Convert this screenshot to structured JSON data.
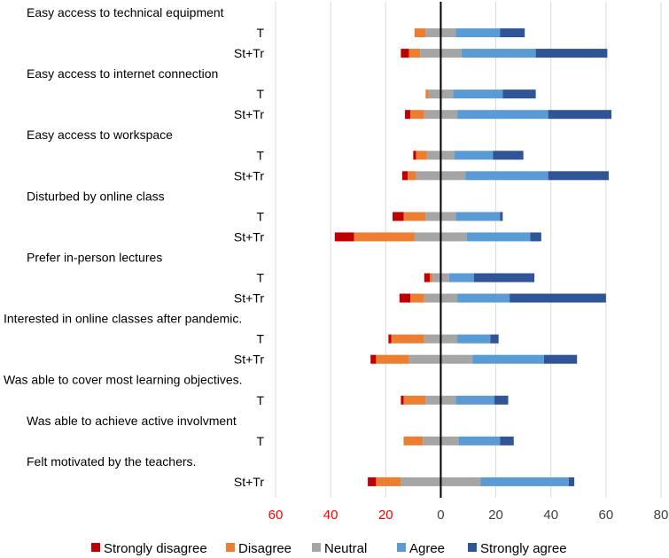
{
  "colors": {
    "strongly_disagree": "#c00000",
    "disagree": "#ed7d31",
    "neutral": "#a5a5a5",
    "agree": "#5b9bd5",
    "strongly_agree": "#2f5597",
    "negative_tick": "#ff0000",
    "grid": "#d9d9d9"
  },
  "chart_data": {
    "type": "bar",
    "orientation": "horizontal",
    "stacking": "diverging",
    "title": "",
    "xlabel": "",
    "ylabel": "",
    "xlim": [
      -60,
      80
    ],
    "x_ticks": [
      {
        "value": -60,
        "label": "60"
      },
      {
        "value": -40,
        "label": "40"
      },
      {
        "value": -20,
        "label": "20"
      },
      {
        "value": 0,
        "label": "0"
      },
      {
        "value": 20,
        "label": "20"
      },
      {
        "value": 40,
        "label": "40"
      },
      {
        "value": 60,
        "label": "60"
      },
      {
        "value": 80,
        "label": "80"
      }
    ],
    "grid": true,
    "legend_position": "bottom",
    "series_names": [
      "Strongly disagree",
      "Disagree",
      "Neutral",
      "Agree",
      "Strongly agree"
    ],
    "rows": [
      {
        "label": "Easy access to  technical equipment",
        "kind": "heading"
      },
      {
        "label": "T",
        "kind": "bar",
        "values": [
          0,
          4,
          11,
          16,
          9
        ]
      },
      {
        "label": "St+Tr",
        "kind": "bar",
        "values": [
          3,
          4,
          15,
          27,
          26
        ]
      },
      {
        "label": "Easy access to internet connection",
        "kind": "heading"
      },
      {
        "label": "T",
        "kind": "bar",
        "values": [
          0,
          1,
          9,
          18,
          12
        ]
      },
      {
        "label": "St+Tr",
        "kind": "bar",
        "values": [
          2,
          5,
          12,
          33,
          23
        ]
      },
      {
        "label": "Easy access to workspace",
        "kind": "heading"
      },
      {
        "label": "T",
        "kind": "bar",
        "values": [
          1,
          4,
          10,
          14,
          11
        ]
      },
      {
        "label": "St+Tr",
        "kind": "bar",
        "values": [
          2,
          3,
          18,
          30,
          22
        ]
      },
      {
        "label": "Disturbed by online class",
        "kind": "heading"
      },
      {
        "label": "T",
        "kind": "bar",
        "values": [
          4,
          8,
          11,
          16,
          1
        ]
      },
      {
        "label": "St+Tr",
        "kind": "bar",
        "values": [
          7,
          22,
          19,
          23,
          4
        ]
      },
      {
        "label": "Prefer in-person lectures",
        "kind": "heading"
      },
      {
        "label": "T",
        "kind": "bar",
        "values": [
          2,
          1,
          6,
          9,
          22
        ]
      },
      {
        "label": "St+Tr",
        "kind": "bar",
        "values": [
          4,
          5,
          12,
          19,
          35
        ]
      },
      {
        "label": "Interested in online classes after pandemic.",
        "kind": "heading"
      },
      {
        "label": "T",
        "kind": "bar",
        "values": [
          1,
          12,
          12,
          12,
          3
        ]
      },
      {
        "label": "St+Tr",
        "kind": "bar",
        "values": [
          2,
          12,
          23,
          26,
          12
        ]
      },
      {
        "label": "Was able to cover most learning objectives.",
        "kind": "heading"
      },
      {
        "label": "T",
        "kind": "bar",
        "values": [
          1,
          8,
          11,
          14,
          5
        ]
      },
      {
        "label": "Was able to achieve active involvment",
        "kind": "heading"
      },
      {
        "label": "T",
        "kind": "bar",
        "values": [
          0,
          7,
          13,
          15,
          5
        ]
      },
      {
        "label": "Felt motivated by the teachers.",
        "kind": "heading"
      },
      {
        "label": "St+Tr",
        "kind": "bar",
        "values": [
          3,
          9,
          29,
          32,
          2
        ]
      }
    ]
  }
}
